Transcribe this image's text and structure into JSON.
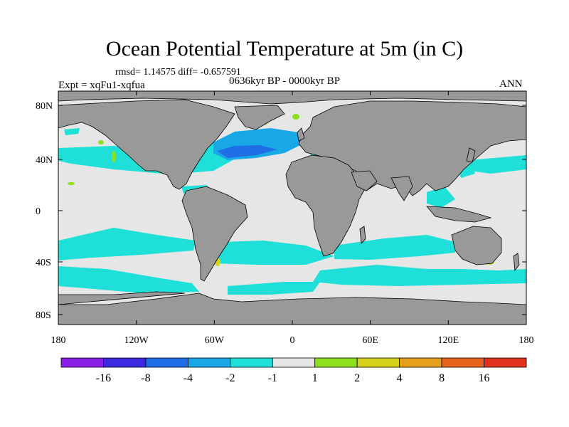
{
  "title": "Ocean Potential Temperature at 5m (in C)",
  "stats": "rmsd= 1.14575  diff= -0.657591",
  "experiment": "Expt = xqFu1-xqfua",
  "period": "0636kyr BP - 0000kyr BP",
  "season": "ANN",
  "latitude_labels": [
    "80N",
    "40N",
    "0",
    "40S",
    "80S"
  ],
  "longitude_labels": [
    "180",
    "120W",
    "60W",
    "0",
    "60E",
    "120E",
    "180"
  ],
  "colorbar": {
    "labels": [
      "-16",
      "-8",
      "-4",
      "-2",
      "-1",
      "1",
      "2",
      "4",
      "8",
      "16"
    ],
    "colors": [
      "#8a1ee6",
      "#3c2ae0",
      "#1f6ee6",
      "#18a8e8",
      "#1ee0d8",
      "#e6e6e6",
      "#8ce01e",
      "#d4d21c",
      "#e6a01c",
      "#e8641c",
      "#e0321c"
    ]
  },
  "map_colors": {
    "land": "#999999",
    "ocean_neutral": "#e6e6e6",
    "coastline": "#000000"
  }
}
